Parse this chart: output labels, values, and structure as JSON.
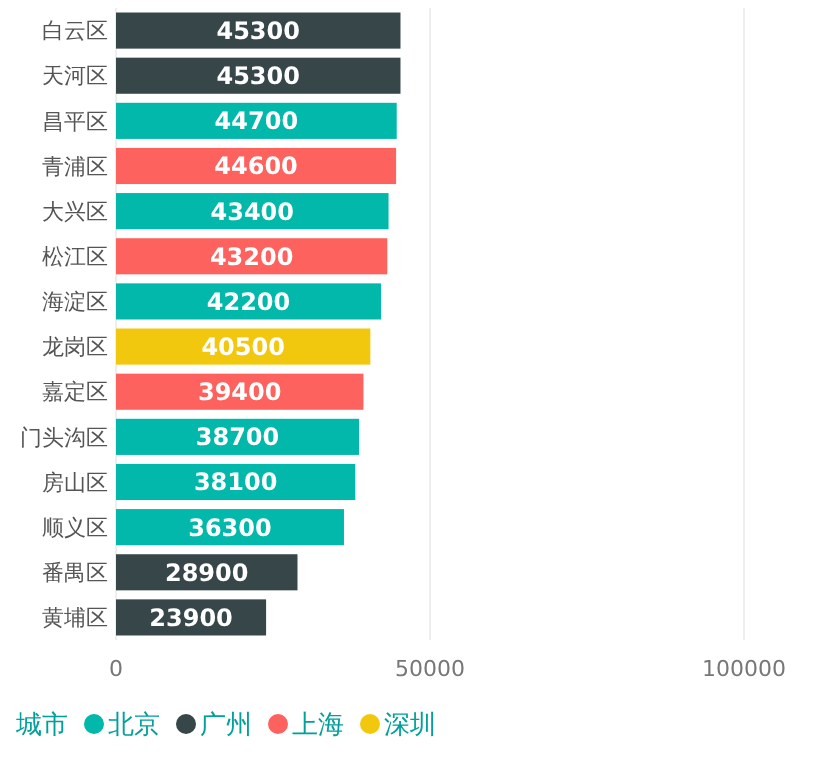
{
  "chart_data": {
    "type": "bar",
    "orientation": "horizontal",
    "categories": [
      "白云区",
      "天河区",
      "昌平区",
      "青浦区",
      "大兴区",
      "松江区",
      "海淀区",
      "龙岗区",
      "嘉定区",
      "门头沟区",
      "房山区",
      "顺义区",
      "番禺区",
      "黄埔区"
    ],
    "series": [
      {
        "name": "北京",
        "color": "#01b8aa",
        "values": [
          null,
          null,
          44700,
          null,
          43400,
          null,
          42200,
          null,
          null,
          38700,
          38100,
          36300,
          null,
          null
        ]
      },
      {
        "name": "广州",
        "color": "#374649",
        "values": [
          45300,
          45300,
          null,
          null,
          null,
          null,
          null,
          null,
          null,
          null,
          null,
          null,
          28900,
          23900
        ]
      },
      {
        "name": "上海",
        "color": "#fd625e",
        "values": [
          null,
          null,
          null,
          44600,
          null,
          43200,
          null,
          null,
          39400,
          null,
          null,
          null,
          null,
          null
        ]
      },
      {
        "name": "深圳",
        "color": "#f2c80f",
        "values": [
          null,
          null,
          null,
          null,
          null,
          null,
          null,
          40500,
          null,
          null,
          null,
          null,
          null,
          null
        ]
      }
    ],
    "xlim": [
      0,
      100000
    ],
    "xticks": [
      0,
      50000,
      100000
    ],
    "grid": "x",
    "data_labels": true,
    "legend": "bottom",
    "legend_title": "城市"
  }
}
